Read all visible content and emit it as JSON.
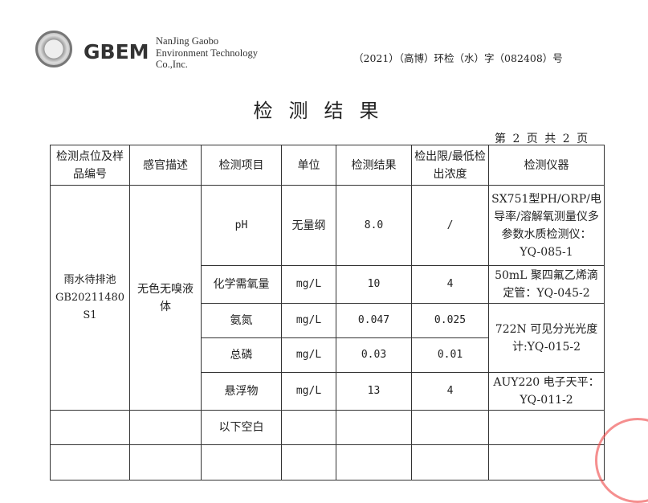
{
  "header": {
    "logo_text": "GBEM",
    "company": [
      "NanJing Gaobo",
      "Environment Technology",
      "Co.,Inc."
    ],
    "doc_number": "（2021）（高博）环检（水）字（082408）号"
  },
  "title": "检测结果",
  "page_info": "第 2 页 共 2 页",
  "table": {
    "columns": [
      "检测点位及样品编号",
      "感官描述",
      "检测项目",
      "单位",
      "检测结果",
      "检出限/最低检出浓度",
      "检测仪器"
    ],
    "location": "雨水待排池 GB20211480 S1",
    "sensory": "无色无嗅液体",
    "rows": [
      {
        "item": "pH",
        "unit": "无量纲",
        "result": "8.0",
        "limit": "/",
        "instrument": "SX751型PH/ORP/电导率/溶解氧测量仪多参数水质检测仪：YQ-085-1"
      },
      {
        "item": "化学需氧量",
        "unit": "mg/L",
        "result": "10",
        "limit": "4",
        "instrument": "50mL 聚四氟乙烯滴定管：YQ-045-2"
      },
      {
        "item": "氨氮",
        "unit": "mg/L",
        "result": "0.047",
        "limit": "0.025",
        "instrument": "722N 可见分光光度计:YQ-015-2"
      },
      {
        "item": "总磷",
        "unit": "mg/L",
        "result": "0.03",
        "limit": "0.01"
      },
      {
        "item": "悬浮物",
        "unit": "mg/L",
        "result": "13",
        "limit": "4",
        "instrument": "AUY220 电子天平：YQ-011-2"
      }
    ],
    "blank_note": "以下空白"
  },
  "colors": {
    "stamp": "#e44444"
  }
}
